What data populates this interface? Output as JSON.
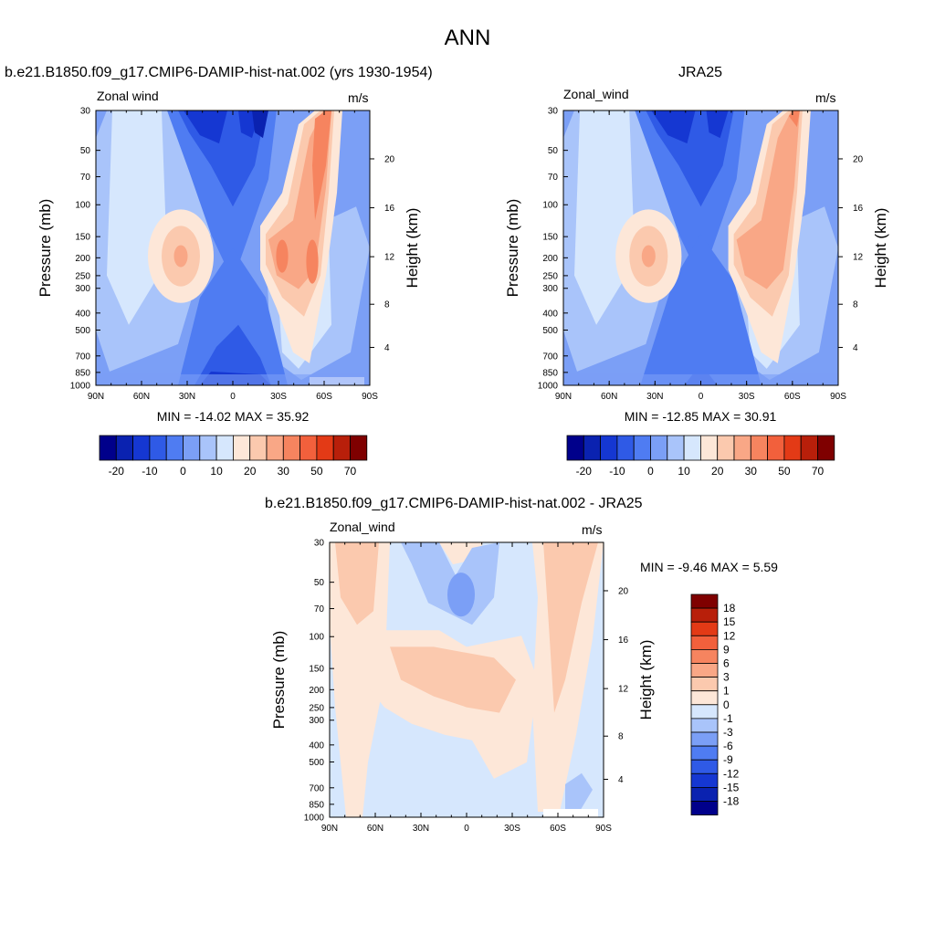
{
  "figure": {
    "title": "ANN"
  },
  "colors": {
    "blues": [
      "#00008b",
      "#0a22b0",
      "#1537d2",
      "#2f5ae6",
      "#4f7cf2",
      "#7b9ff6",
      "#a9c4fa",
      "#d6e7fd"
    ],
    "reds": [
      "#fde7d8",
      "#fbc9ae",
      "#f9a786",
      "#f6845f",
      "#f2603c",
      "#e33a16",
      "#b81f0a",
      "#7f0000"
    ]
  },
  "chart_data": [
    {
      "type": "heatmap",
      "title": "b.e21.B1850.f09_g17.CMIP6-DAMIP-hist-nat.002 (yrs 1930-1954)",
      "field_label": "Zonal wind",
      "units_label": "m/s",
      "ylabel": "Pressure (mb)",
      "ylabel_right": "Height (km)",
      "x_ticks": [
        "90N",
        "60N",
        "30N",
        "0",
        "30S",
        "60S",
        "90S"
      ],
      "y_ticks": [
        "30",
        "50",
        "70",
        "100",
        "150",
        "200",
        "250",
        "300",
        "400",
        "500",
        "700",
        "850",
        "1000"
      ],
      "y_right_ticks": [
        "20",
        "16",
        "12",
        "8",
        "4"
      ],
      "stats": "MIN = -14.02  MAX =  35.92",
      "min": -14.02,
      "max": 35.92,
      "colorbar_labels": [
        "-20",
        "-10",
        "0",
        "10",
        "20",
        "30",
        "50",
        "70"
      ]
    },
    {
      "type": "heatmap",
      "title": "JRA25",
      "field_label": "Zonal_wind",
      "units_label": "m/s",
      "ylabel": "Pressure (mb)",
      "ylabel_right": "Height (km)",
      "x_ticks": [
        "90N",
        "60N",
        "30N",
        "0",
        "30S",
        "60S",
        "90S"
      ],
      "y_ticks": [
        "30",
        "50",
        "70",
        "100",
        "150",
        "200",
        "250",
        "300",
        "400",
        "500",
        "700",
        "850",
        "1000"
      ],
      "y_right_ticks": [
        "20",
        "16",
        "12",
        "8",
        "4"
      ],
      "stats": "MIN = -12.85  MAX =  30.91",
      "min": -12.85,
      "max": 30.91,
      "colorbar_labels": [
        "-20",
        "-10",
        "0",
        "10",
        "20",
        "30",
        "50",
        "70"
      ]
    },
    {
      "type": "heatmap",
      "title": "b.e21.B1850.f09_g17.CMIP6-DAMIP-hist-nat.002 - JRA25",
      "field_label": "Zonal_wind",
      "units_label": "m/s",
      "ylabel": "Pressure (mb)",
      "ylabel_right": "Height (km)",
      "x_ticks": [
        "90N",
        "60N",
        "30N",
        "0",
        "30S",
        "60S",
        "90S"
      ],
      "y_ticks": [
        "30",
        "50",
        "70",
        "100",
        "150",
        "200",
        "250",
        "300",
        "400",
        "500",
        "700",
        "850",
        "1000"
      ],
      "y_right_ticks": [
        "20",
        "16",
        "12",
        "8",
        "4"
      ],
      "stats": "MIN =  -9.46  MAX =   5.59",
      "min": -9.46,
      "max": 5.59,
      "colorbar_labels": [
        "18",
        "15",
        "12",
        "9",
        "6",
        "3",
        "1",
        "0",
        "-1",
        "-3",
        "-6",
        "-9",
        "-12",
        "-15",
        "-18"
      ]
    }
  ]
}
